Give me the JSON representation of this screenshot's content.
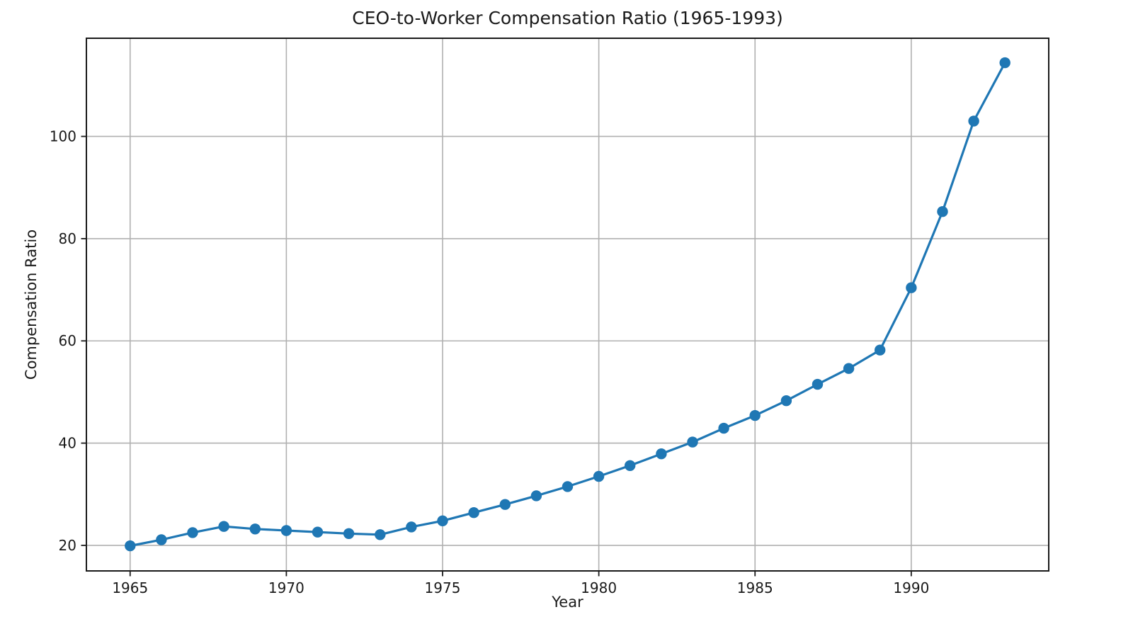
{
  "figure": {
    "background": "#ffffff"
  },
  "chart_data": {
    "type": "line",
    "title": "CEO-to-Worker Compensation Ratio (1965-1993)",
    "xlabel": "Year",
    "ylabel": "Compensation Ratio",
    "x": [
      1965,
      1966,
      1967,
      1968,
      1969,
      1970,
      1971,
      1972,
      1973,
      1974,
      1975,
      1976,
      1977,
      1978,
      1979,
      1980,
      1981,
      1982,
      1983,
      1984,
      1985,
      1986,
      1987,
      1988,
      1989,
      1990,
      1991,
      1992,
      1993
    ],
    "series": [
      {
        "name": "CEO-to-worker compensation ratio",
        "values": [
          19.9,
          21.1,
          22.5,
          23.7,
          23.2,
          22.9,
          22.6,
          22.3,
          22.1,
          23.6,
          24.8,
          26.4,
          28.0,
          29.7,
          31.5,
          33.5,
          35.6,
          37.9,
          40.2,
          42.9,
          45.4,
          48.3,
          51.5,
          54.6,
          58.2,
          70.4,
          85.3,
          103.0,
          114.4
        ],
        "color": "#1f77b4"
      }
    ],
    "xlim": [
      1963.6,
      1994.4
    ],
    "ylim": [
      15.0,
      119.2
    ],
    "xticks": [
      1965,
      1970,
      1975,
      1980,
      1985,
      1990
    ],
    "yticks": [
      20,
      40,
      60,
      80,
      100
    ],
    "grid": true,
    "legend": false,
    "marker": "circle",
    "colors": {
      "line": "#1f77b4",
      "grid": "#b0b0b0",
      "spine": "#1a1a1a",
      "text": "#1a1a1a"
    }
  }
}
